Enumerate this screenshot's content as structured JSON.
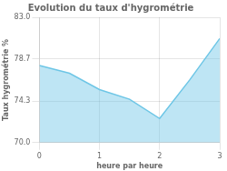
{
  "chart_data": {
    "type": "area",
    "title": "Evolution du taux d'hygrométrie",
    "xlabel": "heure par heure",
    "ylabel": "Taux hygrométrie %",
    "x": [
      0,
      0.5,
      1,
      1.5,
      2,
      2.5,
      3
    ],
    "values": [
      78.0,
      77.2,
      75.5,
      74.5,
      72.5,
      76.5,
      80.8
    ],
    "color": "#6ec6e6",
    "xlim": [
      0,
      3
    ],
    "ylim": [
      70.0,
      83.0
    ],
    "xticks": [
      0,
      1,
      2,
      3
    ],
    "yticks": [
      {
        "value": 70.0,
        "label": "70.0"
      },
      74.3,
      78.7,
      {
        "value": 83.0,
        "label": "83.0"
      }
    ],
    "grid": true
  }
}
